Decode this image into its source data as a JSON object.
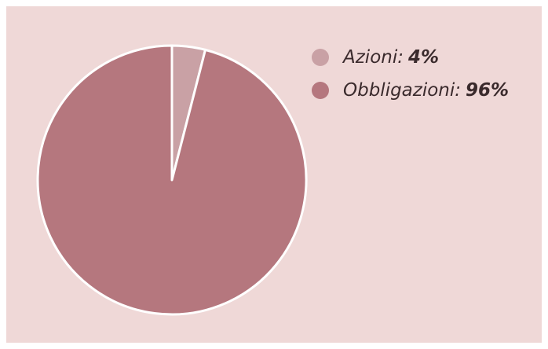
{
  "chart_data": {
    "type": "pie",
    "series": [
      {
        "name": "Azioni:",
        "color": "#c9a1a5",
        "values": [
          4
        ],
        "value_labels": [
          "4%"
        ]
      },
      {
        "name": "Obbligazioni:",
        "color": "#b5777e",
        "values": [
          96
        ],
        "value_labels": [
          "96%"
        ]
      }
    ]
  }
}
